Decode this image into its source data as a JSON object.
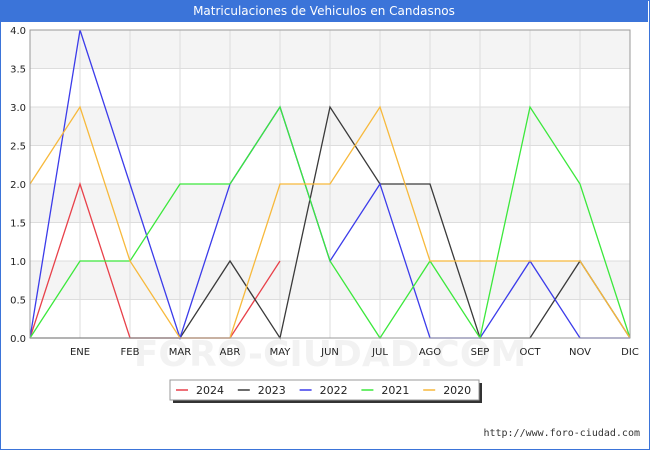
{
  "page": {
    "title": "Matriculaciones de Vehiculos en Candasnos",
    "url_text": "http://www.foro-ciudad.com",
    "watermark": "FORO-CIUDAD.COM"
  },
  "chart_data": {
    "type": "line",
    "title": "Matriculaciones de Vehiculos en Candasnos",
    "xlabel": "",
    "ylabel": "",
    "ylim": [
      0,
      4
    ],
    "yticks": [
      "0.0",
      "0.5",
      "1.0",
      "1.5",
      "2.0",
      "2.5",
      "3.0",
      "3.5",
      "4.0"
    ],
    "categories": [
      "",
      "ENE",
      "FEB",
      "MAR",
      "ABR",
      "MAY",
      "JUN",
      "JUL",
      "AGO",
      "SEP",
      "OCT",
      "NOV",
      "DIC"
    ],
    "grid": true,
    "legend_position": "bottom-center",
    "series": [
      {
        "name": "2024",
        "color": "#e8414a",
        "values": [
          0,
          2,
          0,
          0,
          0,
          1,
          null,
          null,
          null,
          null,
          null,
          null,
          null
        ]
      },
      {
        "name": "2023",
        "color": "#3a3a3a",
        "values": [
          0,
          0,
          0,
          0,
          1,
          0,
          3,
          2,
          2,
          0,
          0,
          1,
          0
        ]
      },
      {
        "name": "2022",
        "color": "#3c3cea",
        "values": [
          0,
          4,
          2,
          0,
          2,
          3,
          1,
          2,
          0,
          0,
          1,
          0,
          0
        ]
      },
      {
        "name": "2021",
        "color": "#3ce83c",
        "values": [
          0,
          1,
          1,
          2,
          2,
          3,
          1,
          0,
          1,
          0,
          3,
          2,
          0
        ]
      },
      {
        "name": "2020",
        "color": "#f7b93c",
        "values": [
          2,
          3,
          1,
          0,
          0,
          2,
          2,
          3,
          1,
          1,
          1,
          1,
          0
        ]
      }
    ]
  }
}
